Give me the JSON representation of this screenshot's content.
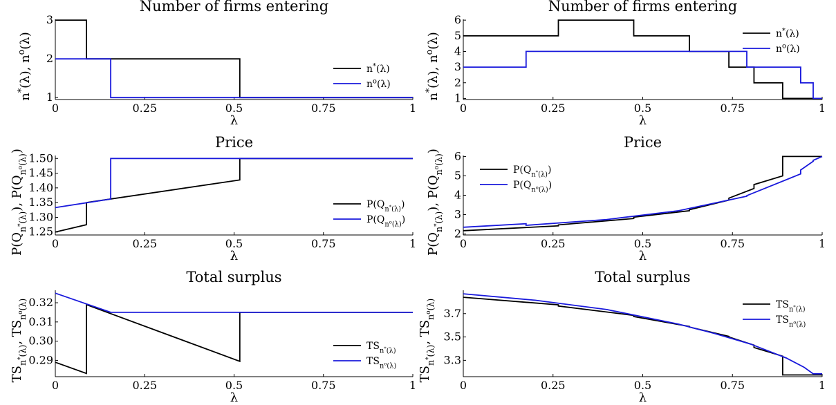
{
  "colors": {
    "n_star": "#000000",
    "n_circ": "#1a1adc"
  },
  "chart_data": [
    {
      "type": "line",
      "title": "Number of firms entering",
      "xlabel": "λ",
      "ylabel_html": "n<sup>*</sup>(λ),  n<sup>o</sup>(λ)",
      "xlim": [
        0,
        1
      ],
      "ylim": [
        0.95,
        3.02
      ],
      "xticks": [
        0,
        0.25,
        0.5,
        0.75,
        1
      ],
      "xtick_labels": [
        "0",
        "0.25",
        "0.5",
        "0.75",
        "1"
      ],
      "yticks": [
        1,
        2,
        3
      ],
      "ytick_labels": [
        "1",
        "2",
        "3"
      ],
      "legend_position": "lower-right",
      "series": [
        {
          "name_html": "n<sup>*</sup>(λ)",
          "color_key": "n_star",
          "x": [
            0,
            0.087,
            0.087,
            0.516,
            0.516,
            1
          ],
          "y": [
            3,
            3,
            2,
            2,
            1,
            1
          ]
        },
        {
          "name_html": "n<sup>o</sup>(λ)",
          "color_key": "n_circ",
          "x": [
            0,
            0.155,
            0.155,
            1
          ],
          "y": [
            2,
            2,
            1,
            1
          ]
        }
      ]
    },
    {
      "type": "line",
      "title": "Number of firms entering",
      "xlabel": "λ",
      "ylabel_html": "n<sup>*</sup>(λ),  n<sup>o</sup>(λ)",
      "xlim": [
        0,
        1
      ],
      "ylim": [
        0.93,
        6.05
      ],
      "xticks": [
        0,
        0.25,
        0.5,
        0.75,
        1
      ],
      "xtick_labels": [
        "0",
        "0.25",
        "0.5",
        "0.75",
        "1"
      ],
      "yticks": [
        1,
        2,
        3,
        4,
        5,
        6
      ],
      "ytick_labels": [
        "1",
        "2",
        "3",
        "4",
        "5",
        "6"
      ],
      "legend_position": "top-right",
      "series": [
        {
          "name_html": "n<sup>*</sup>(λ)",
          "color_key": "n_star",
          "x": [
            0,
            0.265,
            0.265,
            0.475,
            0.475,
            0.63,
            0.63,
            0.74,
            0.74,
            0.81,
            0.81,
            0.89,
            0.89,
            1
          ],
          "y": [
            5,
            5,
            6,
            6,
            5,
            5,
            4,
            4,
            3,
            3,
            2,
            2,
            1,
            1
          ]
        },
        {
          "name_html": "n<sup>o</sup>(λ)",
          "color_key": "n_circ",
          "x": [
            0,
            0.175,
            0.175,
            0.79,
            0.79,
            0.94,
            0.94,
            0.975,
            0.975,
            1
          ],
          "y": [
            3,
            3,
            4,
            4,
            3,
            3,
            2,
            2,
            1,
            1
          ]
        }
      ]
    },
    {
      "type": "line",
      "title": "Price",
      "xlabel": "λ",
      "ylabel_html": "P(Q<sub>n<sup>*</sup>(λ)</sub>),  P(Q<sub>n<sup>o</sup>(λ)</sub>)",
      "xlim": [
        0,
        1
      ],
      "ylim": [
        1.24,
        1.51
      ],
      "xticks": [
        0,
        0.25,
        0.5,
        0.75,
        1
      ],
      "xtick_labels": [
        "0",
        "0.25",
        "0.5",
        "0.75",
        "1"
      ],
      "yticks": [
        1.25,
        1.3,
        1.35,
        1.4,
        1.45,
        1.5
      ],
      "ytick_labels": [
        "1.25",
        "1.30",
        "1.35",
        "1.40",
        "1.45",
        "1.50"
      ],
      "legend_position": "lower-right",
      "series": [
        {
          "name_html": "P(Q<sub>n<sup>*</sup>(λ)</sub>)",
          "color_key": "n_star",
          "x": [
            0,
            0.087,
            0.087,
            0.516,
            0.516,
            1
          ],
          "y": [
            1.25,
            1.275,
            1.35,
            1.427,
            1.5,
            1.5
          ]
        },
        {
          "name_html": "P(Q<sub>n<sup>o</sup>(λ)</sub>)",
          "color_key": "n_circ",
          "x": [
            0,
            0.155,
            0.155,
            1
          ],
          "y": [
            1.333,
            1.362,
            1.5,
            1.5
          ]
        }
      ]
    },
    {
      "type": "line",
      "title": "Price",
      "xlabel": "λ",
      "ylabel_html": "P(Q<sub>n<sup>*</sup>(λ)</sub>),  P(Q<sub>n<sup>o</sup>(λ)</sub>)",
      "xlim": [
        0,
        1
      ],
      "ylim": [
        1.95,
        6.05
      ],
      "xticks": [
        0,
        0.25,
        0.5,
        0.75,
        1
      ],
      "xtick_labels": [
        "0",
        "0.25",
        "0.5",
        "0.75",
        "1"
      ],
      "yticks": [
        2,
        3,
        4,
        5,
        6
      ],
      "ytick_labels": [
        "2",
        "3",
        "4",
        "5",
        "6"
      ],
      "legend_position": "top-left",
      "series": [
        {
          "name_html": "P(Q<sub>n<sup>*</sup>(λ)</sub>)",
          "color_key": "n_star",
          "x": [
            0,
            0.265,
            0.265,
            0.475,
            0.475,
            0.63,
            0.63,
            0.74,
            0.74,
            0.81,
            0.81,
            0.89,
            0.89,
            1
          ],
          "y": [
            2.17,
            2.42,
            2.47,
            2.8,
            2.87,
            3.2,
            3.25,
            3.75,
            3.85,
            4.35,
            4.55,
            5.0,
            6.0,
            6.0
          ]
        },
        {
          "name_html": "P(Q<sub>n<sup>o</sup>(λ)</sub>)",
          "color_key": "n_circ",
          "x": [
            0,
            0.175,
            0.175,
            0.4,
            0.6,
            0.79,
            0.79,
            0.94,
            0.94,
            0.975,
            0.975,
            1
          ],
          "y": [
            2.35,
            2.53,
            2.45,
            2.75,
            3.2,
            3.95,
            3.98,
            5.1,
            5.3,
            5.75,
            5.8,
            6.0
          ]
        }
      ]
    },
    {
      "type": "line",
      "title": "Total surplus",
      "xlabel": "λ",
      "ylabel_html": "TS<sub>n<sup>*</sup>(λ)</sub>,  TS<sub>n<sup>o</sup>(λ)</sub>",
      "xlim": [
        0,
        1
      ],
      "ylim": [
        0.2815,
        0.3265
      ],
      "xticks": [
        0,
        0.25,
        0.5,
        0.75,
        1
      ],
      "xtick_labels": [
        "0",
        "0.25",
        "0.5",
        "0.75",
        "1"
      ],
      "yticks": [
        0.29,
        0.3,
        0.31,
        0.32
      ],
      "ytick_labels": [
        "0.29",
        "0.30",
        "0.31",
        "0.32"
      ],
      "legend_position": "lower-right",
      "series": [
        {
          "name_html": "TS<sub>n<sup>*</sup>(λ)</sub>",
          "color_key": "n_star",
          "x": [
            0,
            0.087,
            0.087,
            0.516,
            0.516,
            1
          ],
          "y": [
            0.289,
            0.2832,
            0.319,
            0.2895,
            0.315,
            0.315
          ]
        },
        {
          "name_html": "TS<sub>n<sup>o</sup>(λ)</sub>",
          "color_key": "n_circ",
          "x": [
            0,
            0.155,
            1
          ],
          "y": [
            0.325,
            0.315,
            0.315
          ]
        }
      ]
    },
    {
      "type": "line",
      "title": "Total surplus",
      "xlabel": "λ",
      "ylabel_html": "TS<sub>n<sup>*</sup>(λ)</sub>,  TS<sub>n<sup>o</sup>(λ)</sub>",
      "xlim": [
        0,
        1
      ],
      "ylim": [
        3.16,
        3.9
      ],
      "xticks": [
        0,
        0.25,
        0.5,
        0.75,
        1
      ],
      "xtick_labels": [
        "0",
        "0.25",
        "0.5",
        "0.75",
        "1"
      ],
      "yticks": [
        3.3,
        3.5,
        3.7
      ],
      "ytick_labels": [
        "3.3",
        "3.5",
        "3.7"
      ],
      "legend_position": "top-right",
      "series": [
        {
          "name_html": "TS<sub>n<sup>*</sup>(λ)</sub>",
          "color_key": "n_star",
          "x": [
            0,
            0.265,
            0.265,
            0.475,
            0.475,
            0.63,
            0.63,
            0.74,
            0.74,
            0.81,
            0.81,
            0.89,
            0.89,
            1
          ],
          "y": [
            3.84,
            3.775,
            3.765,
            3.685,
            3.675,
            3.59,
            3.585,
            3.505,
            3.5,
            3.43,
            3.41,
            3.335,
            3.175,
            3.175
          ]
        },
        {
          "name_html": "TS<sub>n<sup>o</sup>(λ)</sub>",
          "color_key": "n_circ",
          "x": [
            0,
            0.2,
            0.4,
            0.6,
            0.7,
            0.8,
            0.9,
            0.95,
            0.975,
            1
          ],
          "y": [
            3.87,
            3.815,
            3.735,
            3.61,
            3.53,
            3.44,
            3.32,
            3.24,
            3.185,
            3.185
          ]
        }
      ]
    }
  ]
}
